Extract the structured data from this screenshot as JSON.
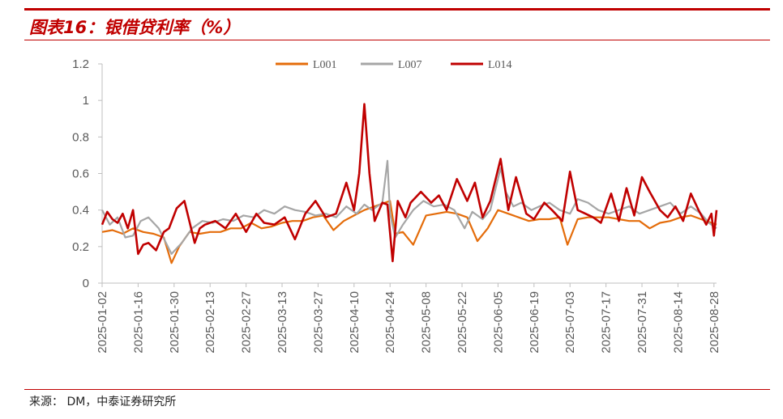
{
  "figure": {
    "title": "图表16：银借贷利率（%）",
    "source": "来源：  DM，中泰证券研究所",
    "accent_color": "#c00000"
  },
  "chart_data": {
    "type": "line",
    "ylim": [
      0,
      1.2
    ],
    "yticks": [
      "0",
      "0.2",
      "0.4",
      "0.6",
      "0.8",
      "1",
      "1.2"
    ],
    "xlim": [
      "2025-01-02",
      "2025-08-29"
    ],
    "x_tick_labels": [
      "2025-01-02",
      "2025-01-16",
      "2025-01-30",
      "2025-02-13",
      "2025-02-27",
      "2025-03-13",
      "2025-03-27",
      "2025-04-10",
      "2025-04-24",
      "2025-05-08",
      "2025-05-22",
      "2025-06-05",
      "2025-06-19",
      "2025-07-03",
      "2025-07-17",
      "2025-07-31",
      "2025-08-14",
      "2025-08-28"
    ],
    "legend_position": "top-center",
    "grid": false,
    "series": [
      {
        "name": "L001",
        "color": "#e46c0a",
        "x": [
          "2025-01-02",
          "2025-01-06",
          "2025-01-10",
          "2025-01-14",
          "2025-01-18",
          "2025-01-22",
          "2025-01-26",
          "2025-01-29",
          "2025-02-01",
          "2025-02-05",
          "2025-02-09",
          "2025-02-13",
          "2025-02-17",
          "2025-02-21",
          "2025-02-25",
          "2025-03-01",
          "2025-03-05",
          "2025-03-09",
          "2025-03-13",
          "2025-03-17",
          "2025-03-21",
          "2025-03-25",
          "2025-03-29",
          "2025-04-02",
          "2025-04-06",
          "2025-04-10",
          "2025-04-14",
          "2025-04-18",
          "2025-04-22",
          "2025-04-24",
          "2025-04-26",
          "2025-04-29",
          "2025-05-03",
          "2025-05-08",
          "2025-05-12",
          "2025-05-16",
          "2025-05-20",
          "2025-05-24",
          "2025-05-28",
          "2025-06-01",
          "2025-06-05",
          "2025-06-09",
          "2025-06-13",
          "2025-06-17",
          "2025-06-21",
          "2025-06-25",
          "2025-06-29",
          "2025-07-02",
          "2025-07-06",
          "2025-07-10",
          "2025-07-14",
          "2025-07-18",
          "2025-07-22",
          "2025-07-26",
          "2025-07-30",
          "2025-08-03",
          "2025-08-07",
          "2025-08-11",
          "2025-08-15",
          "2025-08-19",
          "2025-08-23",
          "2025-08-29"
        ],
        "y": [
          0.28,
          0.29,
          0.27,
          0.3,
          0.28,
          0.27,
          0.25,
          0.11,
          0.2,
          0.28,
          0.27,
          0.28,
          0.28,
          0.3,
          0.3,
          0.33,
          0.3,
          0.31,
          0.33,
          0.34,
          0.34,
          0.36,
          0.37,
          0.29,
          0.34,
          0.37,
          0.4,
          0.42,
          0.44,
          0.45,
          0.27,
          0.28,
          0.21,
          0.37,
          0.38,
          0.39,
          0.38,
          0.36,
          0.23,
          0.3,
          0.4,
          0.38,
          0.36,
          0.34,
          0.35,
          0.35,
          0.36,
          0.21,
          0.35,
          0.36,
          0.36,
          0.36,
          0.35,
          0.34,
          0.34,
          0.3,
          0.33,
          0.34,
          0.36,
          0.37,
          0.35,
          0.32
        ]
      },
      {
        "name": "L007",
        "color": "#a6a6a6",
        "x": [
          "2025-01-02",
          "2025-01-05",
          "2025-01-08",
          "2025-01-11",
          "2025-01-14",
          "2025-01-17",
          "2025-01-20",
          "2025-01-24",
          "2025-01-29",
          "2025-02-02",
          "2025-02-06",
          "2025-02-10",
          "2025-02-14",
          "2025-02-18",
          "2025-02-22",
          "2025-02-26",
          "2025-03-02",
          "2025-03-06",
          "2025-03-10",
          "2025-03-14",
          "2025-03-18",
          "2025-03-22",
          "2025-03-26",
          "2025-03-30",
          "2025-04-03",
          "2025-04-07",
          "2025-04-11",
          "2025-04-14",
          "2025-04-17",
          "2025-04-21",
          "2025-04-23",
          "2025-04-24",
          "2025-04-26",
          "2025-04-29",
          "2025-05-03",
          "2025-05-07",
          "2025-05-11",
          "2025-05-15",
          "2025-05-19",
          "2025-05-23",
          "2025-05-26",
          "2025-05-30",
          "2025-06-02",
          "2025-06-06",
          "2025-06-08",
          "2025-06-11",
          "2025-06-14",
          "2025-06-18",
          "2025-06-21",
          "2025-06-25",
          "2025-06-29",
          "2025-07-03",
          "2025-07-06",
          "2025-07-10",
          "2025-07-14",
          "2025-07-18",
          "2025-07-22",
          "2025-07-26",
          "2025-07-30",
          "2025-08-03",
          "2025-08-07",
          "2025-08-11",
          "2025-08-15",
          "2025-08-19",
          "2025-08-23",
          "2025-08-26",
          "2025-08-29"
        ],
        "y": [
          0.4,
          0.32,
          0.36,
          0.25,
          0.26,
          0.34,
          0.36,
          0.3,
          0.16,
          0.22,
          0.3,
          0.34,
          0.33,
          0.35,
          0.34,
          0.37,
          0.36,
          0.4,
          0.38,
          0.42,
          0.4,
          0.39,
          0.37,
          0.38,
          0.36,
          0.42,
          0.38,
          0.43,
          0.4,
          0.44,
          0.67,
          0.38,
          0.25,
          0.32,
          0.4,
          0.45,
          0.42,
          0.43,
          0.4,
          0.3,
          0.39,
          0.35,
          0.4,
          0.63,
          0.5,
          0.42,
          0.44,
          0.4,
          0.42,
          0.44,
          0.4,
          0.38,
          0.46,
          0.44,
          0.4,
          0.38,
          0.4,
          0.42,
          0.38,
          0.4,
          0.42,
          0.44,
          0.38,
          0.42,
          0.38,
          0.33,
          0.3
        ]
      },
      {
        "name": "L014",
        "color": "#c00000",
        "x": [
          "2025-01-02",
          "2025-01-04",
          "2025-01-06",
          "2025-01-08",
          "2025-01-10",
          "2025-01-12",
          "2025-01-14",
          "2025-01-16",
          "2025-01-18",
          "2025-01-20",
          "2025-01-23",
          "2025-01-26",
          "2025-01-28",
          "2025-01-31",
          "2025-02-03",
          "2025-02-07",
          "2025-02-09",
          "2025-02-11",
          "2025-02-15",
          "2025-02-19",
          "2025-02-23",
          "2025-02-27",
          "2025-03-03",
          "2025-03-06",
          "2025-03-10",
          "2025-03-14",
          "2025-03-18",
          "2025-03-22",
          "2025-03-26",
          "2025-03-30",
          "2025-04-03",
          "2025-04-07",
          "2025-04-10",
          "2025-04-12",
          "2025-04-14",
          "2025-04-16",
          "2025-04-18",
          "2025-04-21",
          "2025-04-23",
          "2025-04-25",
          "2025-04-27",
          "2025-04-30",
          "2025-05-02",
          "2025-05-06",
          "2025-05-10",
          "2025-05-13",
          "2025-05-16",
          "2025-05-20",
          "2025-05-24",
          "2025-05-27",
          "2025-05-30",
          "2025-06-02",
          "2025-06-06",
          "2025-06-09",
          "2025-06-12",
          "2025-06-16",
          "2025-06-19",
          "2025-06-23",
          "2025-06-26",
          "2025-06-30",
          "2025-07-03",
          "2025-07-06",
          "2025-07-09",
          "2025-07-12",
          "2025-07-15",
          "2025-07-19",
          "2025-07-22",
          "2025-07-25",
          "2025-07-28",
          "2025-07-31",
          "2025-08-03",
          "2025-08-07",
          "2025-08-10",
          "2025-08-13",
          "2025-08-16",
          "2025-08-19",
          "2025-08-22",
          "2025-08-25",
          "2025-08-27",
          "2025-08-28",
          "2025-08-29"
        ],
        "y": [
          0.32,
          0.39,
          0.35,
          0.33,
          0.38,
          0.3,
          0.4,
          0.16,
          0.21,
          0.22,
          0.18,
          0.28,
          0.3,
          0.41,
          0.45,
          0.22,
          0.3,
          0.32,
          0.34,
          0.3,
          0.38,
          0.28,
          0.38,
          0.33,
          0.32,
          0.36,
          0.24,
          0.38,
          0.45,
          0.36,
          0.38,
          0.55,
          0.4,
          0.6,
          0.98,
          0.6,
          0.34,
          0.44,
          0.43,
          0.12,
          0.45,
          0.36,
          0.44,
          0.5,
          0.44,
          0.48,
          0.4,
          0.57,
          0.45,
          0.55,
          0.36,
          0.45,
          0.68,
          0.4,
          0.58,
          0.38,
          0.35,
          0.44,
          0.4,
          0.34,
          0.61,
          0.4,
          0.38,
          0.36,
          0.33,
          0.49,
          0.34,
          0.52,
          0.37,
          0.58,
          0.5,
          0.4,
          0.36,
          0.42,
          0.34,
          0.49,
          0.4,
          0.32,
          0.38,
          0.26,
          0.4
        ]
      }
    ]
  }
}
